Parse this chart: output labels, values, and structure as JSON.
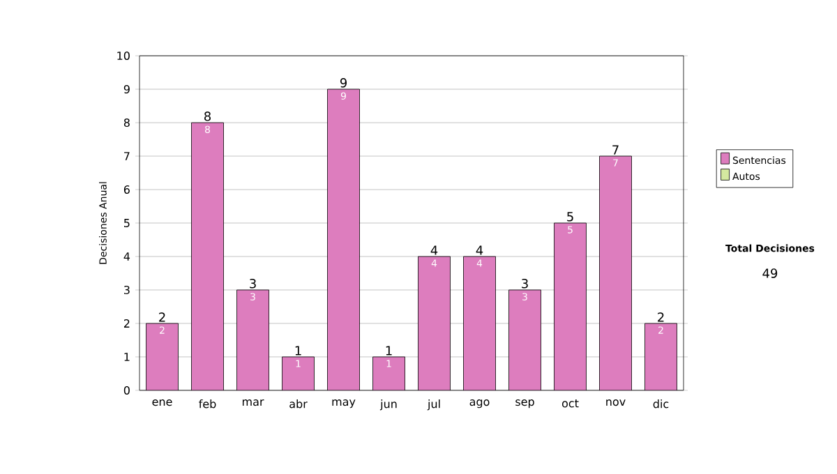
{
  "chart_data": {
    "type": "bar",
    "stacked": true,
    "ylabel": "Decisiones Anual",
    "categories": [
      "ene",
      "feb",
      "mar",
      "abr",
      "may",
      "jun",
      "jul",
      "ago",
      "sep",
      "oct",
      "nov",
      "dic"
    ],
    "series": [
      {
        "name": "Sentencias",
        "color": "#dd7dbe",
        "values": [
          2,
          8,
          3,
          1,
          9,
          1,
          4,
          4,
          3,
          5,
          7,
          2
        ],
        "value_labels": [
          "2",
          "8",
          "3",
          "1",
          "9",
          "1",
          "4",
          "4",
          "3",
          "5",
          "7",
          "2"
        ]
      },
      {
        "name": "Autos",
        "color": "#d4e8a0",
        "values": [
          0,
          0,
          0,
          0,
          0,
          0,
          0,
          0,
          0,
          0,
          0,
          0
        ]
      }
    ],
    "totals": [
      "2",
      "8",
      "3",
      "1",
      "9",
      "1",
      "4",
      "4",
      "3",
      "5",
      "7",
      "2"
    ],
    "ylim": [
      0,
      10
    ],
    "yticks": [
      0,
      1,
      2,
      3,
      4,
      5,
      6,
      7,
      8,
      9,
      10
    ],
    "grid": "y",
    "legend": "right",
    "annotations": [
      "Total Decisiones",
      "49"
    ]
  }
}
